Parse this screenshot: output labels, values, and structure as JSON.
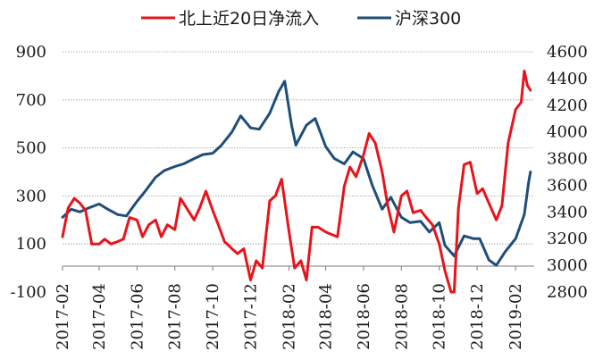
{
  "chart_data": {
    "type": "line",
    "legend": [
      {
        "label": "北上近20日净流入",
        "color": "#e8141b"
      },
      {
        "label": "沪深300",
        "color": "#1f4e79"
      }
    ],
    "left_axis": {
      "min": -100,
      "max": 900,
      "ticks": [
        "900",
        "700",
        "500",
        "300",
        "100",
        "-100"
      ]
    },
    "right_axis": {
      "min": 2800,
      "max": 4600,
      "ticks": [
        "4600",
        "4400",
        "4200",
        "4000",
        "3800",
        "3600",
        "3400",
        "3200",
        "3000",
        "2800"
      ]
    },
    "x_ticks": [
      "2017-02",
      "2017-04",
      "2017-06",
      "2017-08",
      "2017-10",
      "2017-12",
      "2018-02",
      "2018-04",
      "2018-06",
      "2018-08",
      "2018-10",
      "2018-12",
      "2019-02"
    ],
    "series": [
      {
        "name": "北上近20日净流入",
        "axis": "left",
        "color": "#e8141b",
        "points": [
          [
            "2017-02-01",
            130
          ],
          [
            "2017-02-10",
            250
          ],
          [
            "2017-02-20",
            290
          ],
          [
            "2017-03-01",
            270
          ],
          [
            "2017-03-10",
            240
          ],
          [
            "2017-03-20",
            100
          ],
          [
            "2017-04-01",
            100
          ],
          [
            "2017-04-10",
            120
          ],
          [
            "2017-04-20",
            100
          ],
          [
            "2017-05-01",
            110
          ],
          [
            "2017-05-10",
            120
          ],
          [
            "2017-05-20",
            210
          ],
          [
            "2017-06-01",
            200
          ],
          [
            "2017-06-10",
            130
          ],
          [
            "2017-06-20",
            180
          ],
          [
            "2017-07-01",
            200
          ],
          [
            "2017-07-10",
            130
          ],
          [
            "2017-07-20",
            180
          ],
          [
            "2017-08-01",
            160
          ],
          [
            "2017-08-10",
            290
          ],
          [
            "2017-08-20",
            250
          ],
          [
            "2017-09-01",
            200
          ],
          [
            "2017-09-10",
            250
          ],
          [
            "2017-09-20",
            320
          ],
          [
            "2017-10-01",
            240
          ],
          [
            "2017-10-10",
            180
          ],
          [
            "2017-10-20",
            110
          ],
          [
            "2017-11-01",
            80
          ],
          [
            "2017-11-10",
            60
          ],
          [
            "2017-11-20",
            80
          ],
          [
            "2017-12-01",
            -50
          ],
          [
            "2017-12-10",
            30
          ],
          [
            "2017-12-20",
            0
          ],
          [
            "2018-01-01",
            280
          ],
          [
            "2018-01-10",
            300
          ],
          [
            "2018-01-20",
            370
          ],
          [
            "2018-02-01",
            150
          ],
          [
            "2018-02-10",
            0
          ],
          [
            "2018-02-20",
            30
          ],
          [
            "2018-03-01",
            -50
          ],
          [
            "2018-03-10",
            170
          ],
          [
            "2018-03-20",
            170
          ],
          [
            "2018-04-01",
            150
          ],
          [
            "2018-04-10",
            140
          ],
          [
            "2018-04-20",
            130
          ],
          [
            "2018-05-01",
            340
          ],
          [
            "2018-05-10",
            420
          ],
          [
            "2018-05-20",
            380
          ],
          [
            "2018-06-01",
            470
          ],
          [
            "2018-06-10",
            560
          ],
          [
            "2018-06-20",
            520
          ],
          [
            "2018-07-01",
            400
          ],
          [
            "2018-07-10",
            260
          ],
          [
            "2018-07-20",
            150
          ],
          [
            "2018-08-01",
            300
          ],
          [
            "2018-08-10",
            320
          ],
          [
            "2018-08-20",
            230
          ],
          [
            "2018-09-01",
            240
          ],
          [
            "2018-09-10",
            210
          ],
          [
            "2018-09-20",
            180
          ],
          [
            "2018-10-01",
            100
          ],
          [
            "2018-10-10",
            -10
          ],
          [
            "2018-10-20",
            -100
          ],
          [
            "2018-10-25",
            -100
          ],
          [
            "2018-11-01",
            250
          ],
          [
            "2018-11-10",
            430
          ],
          [
            "2018-11-20",
            440
          ],
          [
            "2018-12-01",
            310
          ],
          [
            "2018-12-10",
            330
          ],
          [
            "2018-12-20",
            270
          ],
          [
            "2019-01-01",
            200
          ],
          [
            "2019-01-10",
            260
          ],
          [
            "2019-01-20",
            520
          ],
          [
            "2019-02-01",
            660
          ],
          [
            "2019-02-10",
            690
          ],
          [
            "2019-02-15",
            820
          ],
          [
            "2019-02-20",
            760
          ],
          [
            "2019-02-25",
            740
          ]
        ]
      },
      {
        "name": "沪深300",
        "axis": "right",
        "color": "#1f4e79",
        "points": [
          [
            "2017-02-01",
            3360
          ],
          [
            "2017-02-15",
            3420
          ],
          [
            "2017-03-01",
            3400
          ],
          [
            "2017-03-15",
            3430
          ],
          [
            "2017-04-01",
            3460
          ],
          [
            "2017-04-15",
            3420
          ],
          [
            "2017-05-01",
            3380
          ],
          [
            "2017-05-15",
            3370
          ],
          [
            "2017-06-01",
            3480
          ],
          [
            "2017-06-15",
            3560
          ],
          [
            "2017-07-01",
            3660
          ],
          [
            "2017-07-15",
            3710
          ],
          [
            "2017-08-01",
            3740
          ],
          [
            "2017-08-15",
            3760
          ],
          [
            "2017-09-01",
            3800
          ],
          [
            "2017-09-15",
            3830
          ],
          [
            "2017-10-01",
            3840
          ],
          [
            "2017-10-15",
            3900
          ],
          [
            "2017-11-01",
            4000
          ],
          [
            "2017-11-15",
            4120
          ],
          [
            "2017-12-01",
            4030
          ],
          [
            "2017-12-15",
            4020
          ],
          [
            "2018-01-01",
            4140
          ],
          [
            "2018-01-15",
            4300
          ],
          [
            "2018-01-25",
            4380
          ],
          [
            "2018-02-05",
            4050
          ],
          [
            "2018-02-12",
            3900
          ],
          [
            "2018-03-01",
            4050
          ],
          [
            "2018-03-15",
            4100
          ],
          [
            "2018-04-01",
            3890
          ],
          [
            "2018-04-15",
            3800
          ],
          [
            "2018-05-01",
            3760
          ],
          [
            "2018-05-15",
            3850
          ],
          [
            "2018-06-01",
            3800
          ],
          [
            "2018-06-15",
            3600
          ],
          [
            "2018-07-01",
            3420
          ],
          [
            "2018-07-15",
            3510
          ],
          [
            "2018-08-01",
            3360
          ],
          [
            "2018-08-15",
            3320
          ],
          [
            "2018-09-01",
            3330
          ],
          [
            "2018-09-15",
            3250
          ],
          [
            "2018-10-01",
            3320
          ],
          [
            "2018-10-10",
            3150
          ],
          [
            "2018-10-25",
            3070
          ],
          [
            "2018-11-10",
            3220
          ],
          [
            "2018-11-25",
            3200
          ],
          [
            "2018-12-05",
            3200
          ],
          [
            "2018-12-20",
            3040
          ],
          [
            "2019-01-01",
            3000
          ],
          [
            "2019-01-15",
            3100
          ],
          [
            "2019-02-01",
            3200
          ],
          [
            "2019-02-15",
            3380
          ],
          [
            "2019-02-22",
            3620
          ],
          [
            "2019-02-25",
            3700
          ]
        ]
      }
    ]
  }
}
